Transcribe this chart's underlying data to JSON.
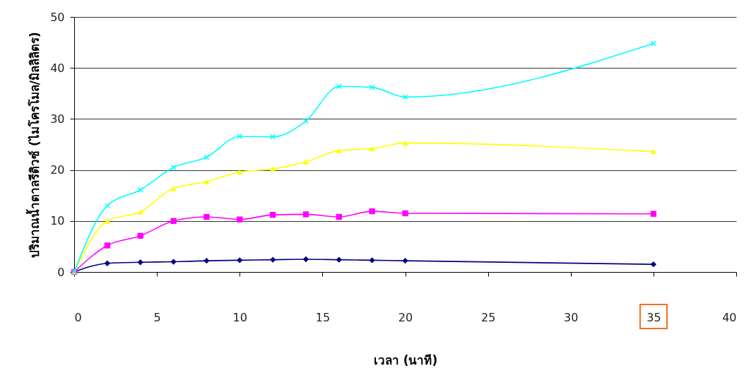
{
  "chart_data": {
    "type": "line",
    "xlabel": "เวลา (นาที)",
    "ylabel": "ปริมาณน้ำตาลรีดิวซ์ (ไมโครโมล/มิลลิลิตร)",
    "x": [
      0,
      2,
      4,
      6,
      8,
      10,
      12,
      14,
      16,
      18,
      20,
      35
    ],
    "series": [
      {
        "color": "#000080",
        "marker": "diamond",
        "values": [
          0,
          1.7,
          1.9,
          2.0,
          2.2,
          2.3,
          2.4,
          2.5,
          2.4,
          2.3,
          2.2,
          1.5
        ]
      },
      {
        "color": "#ff00ff",
        "marker": "square",
        "values": [
          0,
          5.2,
          7.1,
          10.0,
          10.8,
          10.3,
          11.2,
          11.3,
          10.8,
          11.9,
          11.5,
          11.4
        ]
      },
      {
        "color": "#ffff00",
        "marker": "triangle",
        "values": [
          0,
          10.0,
          11.8,
          16.4,
          17.7,
          19.6,
          20.2,
          21.6,
          23.8,
          24.2,
          25.3,
          23.6
        ]
      },
      {
        "color": "#00ffff",
        "marker": "cross",
        "values": [
          0,
          13.0,
          16.1,
          20.5,
          22.5,
          26.6,
          26.5,
          29.6,
          36.4,
          36.2,
          34.3,
          44.8
        ]
      }
    ],
    "xlim": [
      0,
      40
    ],
    "xticks": [
      0,
      5,
      10,
      15,
      20,
      25,
      30,
      35,
      40
    ],
    "ylim": [
      0,
      50
    ],
    "yticks": [
      0,
      10,
      20,
      30,
      40,
      50
    ],
    "grid": "y"
  }
}
